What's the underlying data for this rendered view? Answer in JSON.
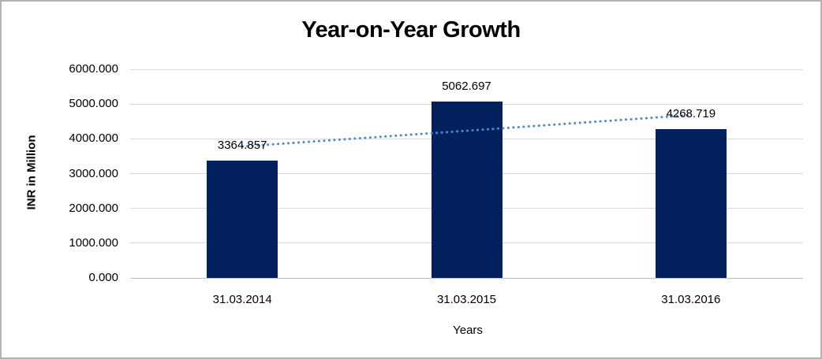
{
  "chart_data": {
    "type": "bar",
    "title": "Year-on-Year Growth",
    "xlabel": "Years",
    "ylabel": "INR in Million",
    "categories": [
      "31.03.2014",
      "31.03.2015",
      "31.03.2016"
    ],
    "values": [
      3364.857,
      5062.697,
      4268.719
    ],
    "data_labels": [
      "3364.857",
      "5062.697",
      "4268.719"
    ],
    "ylim": [
      0,
      6000
    ],
    "yticks": [
      0,
      1000,
      2000,
      3000,
      4000,
      5000,
      6000
    ],
    "ytick_labels": [
      "0.000",
      "1000.000",
      "2000.000",
      "3000.000",
      "4000.000",
      "5000.000",
      "6000.000"
    ],
    "grid": true,
    "legend": "none",
    "bar_color": "#02215e",
    "trendline": {
      "type": "linear",
      "style": "dotted",
      "color": "#4e8ac8",
      "endpoint_values": [
        3780.2,
        4684.0
      ]
    }
  },
  "colors": {
    "background": "#ffffff",
    "gridline": "#d9d9d9",
    "axis_line": "#bfbfbf",
    "text": "#000000",
    "frame_border": "#b3b3b3"
  }
}
